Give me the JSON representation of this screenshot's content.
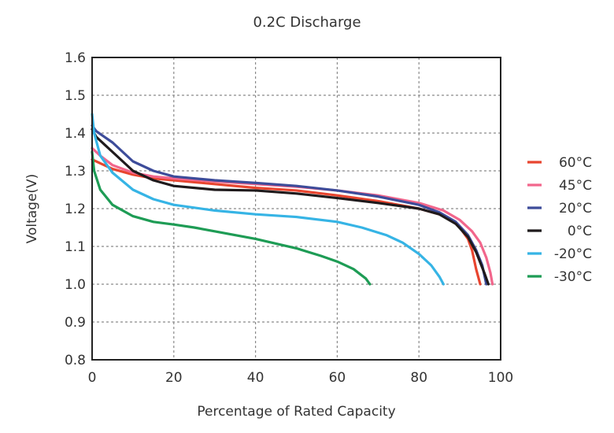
{
  "chart_data": {
    "type": "line",
    "title": "0.2C Discharge",
    "xlabel": "Percentage of Rated Capacity",
    "ylabel": "Voltage(V)",
    "xlim": [
      0,
      100
    ],
    "ylim": [
      0.8,
      1.6
    ],
    "x_ticks": [
      "0",
      "20",
      "40",
      "60",
      "80",
      "100"
    ],
    "y_ticks": [
      "0.8",
      "0.9",
      "1.0",
      "1.1",
      "1.2",
      "1.3",
      "1.4",
      "1.5",
      "1.6"
    ],
    "grid": true,
    "legend_position": "right",
    "series": [
      {
        "name": "60°C",
        "color": "#e8452f",
        "points": [
          [
            0,
            1.33
          ],
          [
            2,
            1.32
          ],
          [
            5,
            1.305
          ],
          [
            10,
            1.29
          ],
          [
            15,
            1.28
          ],
          [
            20,
            1.275
          ],
          [
            30,
            1.265
          ],
          [
            40,
            1.255
          ],
          [
            50,
            1.248
          ],
          [
            60,
            1.235
          ],
          [
            70,
            1.22
          ],
          [
            80,
            1.2
          ],
          [
            85,
            1.185
          ],
          [
            88,
            1.17
          ],
          [
            90,
            1.15
          ],
          [
            92,
            1.12
          ],
          [
            93,
            1.09
          ],
          [
            94,
            1.04
          ],
          [
            95,
            1.0
          ]
        ]
      },
      {
        "name": "45°C",
        "color": "#f2668c",
        "points": [
          [
            0,
            1.36
          ],
          [
            2,
            1.34
          ],
          [
            5,
            1.315
          ],
          [
            10,
            1.295
          ],
          [
            15,
            1.285
          ],
          [
            20,
            1.28
          ],
          [
            30,
            1.272
          ],
          [
            40,
            1.265
          ],
          [
            50,
            1.258
          ],
          [
            60,
            1.248
          ],
          [
            70,
            1.235
          ],
          [
            80,
            1.215
          ],
          [
            86,
            1.195
          ],
          [
            90,
            1.17
          ],
          [
            93,
            1.14
          ],
          [
            95,
            1.11
          ],
          [
            96.5,
            1.07
          ],
          [
            97.5,
            1.03
          ],
          [
            98,
            1.0
          ]
        ]
      },
      {
        "name": "20°C",
        "color": "#3d4c9a",
        "points": [
          [
            0,
            1.42
          ],
          [
            1,
            1.405
          ],
          [
            3,
            1.39
          ],
          [
            5,
            1.375
          ],
          [
            10,
            1.325
          ],
          [
            15,
            1.3
          ],
          [
            20,
            1.285
          ],
          [
            30,
            1.275
          ],
          [
            40,
            1.268
          ],
          [
            50,
            1.26
          ],
          [
            60,
            1.248
          ],
          [
            70,
            1.232
          ],
          [
            80,
            1.21
          ],
          [
            85,
            1.19
          ],
          [
            89,
            1.165
          ],
          [
            92,
            1.13
          ],
          [
            94,
            1.09
          ],
          [
            95.5,
            1.05
          ],
          [
            96.5,
            1.0
          ]
        ]
      },
      {
        "name": "0°C",
        "color": "#1f1a1c",
        "points": [
          [
            0,
            1.41
          ],
          [
            1,
            1.39
          ],
          [
            3,
            1.37
          ],
          [
            5,
            1.35
          ],
          [
            10,
            1.3
          ],
          [
            15,
            1.275
          ],
          [
            20,
            1.26
          ],
          [
            30,
            1.25
          ],
          [
            40,
            1.248
          ],
          [
            50,
            1.24
          ],
          [
            60,
            1.228
          ],
          [
            70,
            1.215
          ],
          [
            80,
            1.2
          ],
          [
            85,
            1.185
          ],
          [
            89,
            1.16
          ],
          [
            92,
            1.125
          ],
          [
            94,
            1.085
          ],
          [
            96,
            1.03
          ],
          [
            97,
            1.0
          ]
        ]
      },
      {
        "name": "-20°C",
        "color": "#36b4e5",
        "points": [
          [
            0,
            1.45
          ],
          [
            0.5,
            1.4
          ],
          [
            2,
            1.34
          ],
          [
            5,
            1.295
          ],
          [
            10,
            1.25
          ],
          [
            15,
            1.225
          ],
          [
            20,
            1.21
          ],
          [
            30,
            1.195
          ],
          [
            40,
            1.185
          ],
          [
            50,
            1.178
          ],
          [
            60,
            1.165
          ],
          [
            66,
            1.15
          ],
          [
            72,
            1.13
          ],
          [
            76,
            1.11
          ],
          [
            80,
            1.08
          ],
          [
            83,
            1.05
          ],
          [
            85,
            1.02
          ],
          [
            86,
            1.0
          ]
        ]
      },
      {
        "name": "-30°C",
        "color": "#1e9c55",
        "points": [
          [
            0,
            1.35
          ],
          [
            0.5,
            1.3
          ],
          [
            2,
            1.25
          ],
          [
            5,
            1.21
          ],
          [
            10,
            1.18
          ],
          [
            15,
            1.165
          ],
          [
            20,
            1.158
          ],
          [
            25,
            1.15
          ],
          [
            30,
            1.14
          ],
          [
            40,
            1.12
          ],
          [
            50,
            1.095
          ],
          [
            56,
            1.075
          ],
          [
            60,
            1.06
          ],
          [
            64,
            1.04
          ],
          [
            67,
            1.015
          ],
          [
            68,
            1.0
          ]
        ]
      }
    ]
  }
}
